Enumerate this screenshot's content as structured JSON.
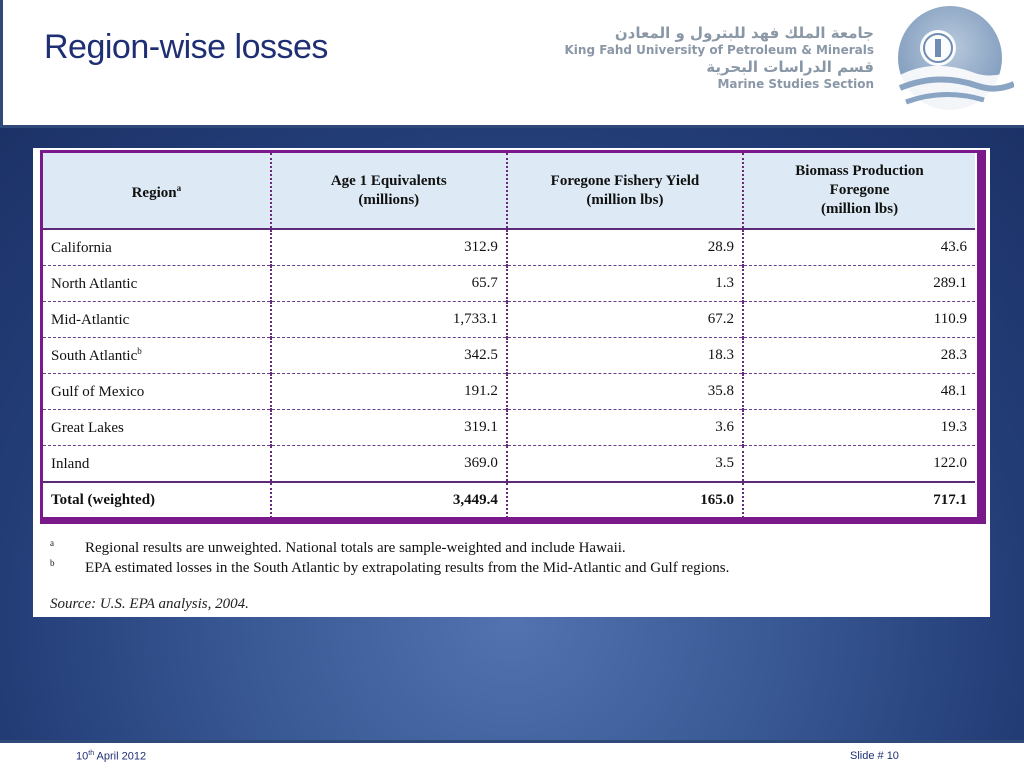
{
  "header": {
    "title": "Region-wise losses",
    "logo": {
      "arabic_university": "جامعة الملك فهد للبترول و المعادن",
      "english_university": "King Fahd University of Petroleum & Minerals",
      "arabic_section": "قسم الدراسات البحرية",
      "english_section": "Marine Studies Section",
      "emblem_icon": "kfupm-emblem-icon"
    }
  },
  "table": {
    "headers": {
      "region": "Region",
      "region_sup": "a",
      "age_line1": "Age 1 Equivalents",
      "age_line2": "(millions)",
      "fish_line1": "Foregone Fishery Yield",
      "fish_line2": "(million lbs)",
      "bio_line1": "Biomass Production",
      "bio_line2": "Foregone",
      "bio_line3": "(million lbs)"
    },
    "rows": [
      {
        "region": "California",
        "sup": "",
        "age": "312.9",
        "fish": "28.9",
        "bio": "43.6"
      },
      {
        "region": "North Atlantic",
        "sup": "",
        "age": "65.7",
        "fish": "1.3",
        "bio": "289.1"
      },
      {
        "region": "Mid-Atlantic",
        "sup": "",
        "age": "1,733.1",
        "fish": "67.2",
        "bio": "110.9"
      },
      {
        "region": "South Atlantic",
        "sup": "b",
        "age": "342.5",
        "fish": "18.3",
        "bio": "28.3"
      },
      {
        "region": "Gulf of Mexico",
        "sup": "",
        "age": "191.2",
        "fish": "35.8",
        "bio": "48.1"
      },
      {
        "region": "Great Lakes",
        "sup": "",
        "age": "319.1",
        "fish": "3.6",
        "bio": "19.3"
      },
      {
        "region": "Inland",
        "sup": "",
        "age": "369.0",
        "fish": "3.5",
        "bio": "122.0"
      }
    ],
    "total": {
      "region": "Total (weighted)",
      "age": "3,449.4",
      "fish": "165.0",
      "bio": "717.1"
    }
  },
  "notes": [
    {
      "mark": "a",
      "text": "Regional results are unweighted.  National totals are sample-weighted and include Hawaii."
    },
    {
      "mark": "b",
      "text": "EPA estimated losses in the South Atlantic by extrapolating results from the Mid-Atlantic and Gulf regions."
    }
  ],
  "source": "Source: U.S. EPA analysis, 2004.",
  "footer": {
    "date_day": "10",
    "date_sup": "th",
    "date_rest": " April 2012",
    "slide_number": "Slide # 10"
  },
  "colors": {
    "title": "#1f2f74",
    "table_border": "#7a1a8a",
    "header_fill": "#ddeaf5",
    "background_dark": "#1c3267",
    "background_light": "#5272b0"
  }
}
